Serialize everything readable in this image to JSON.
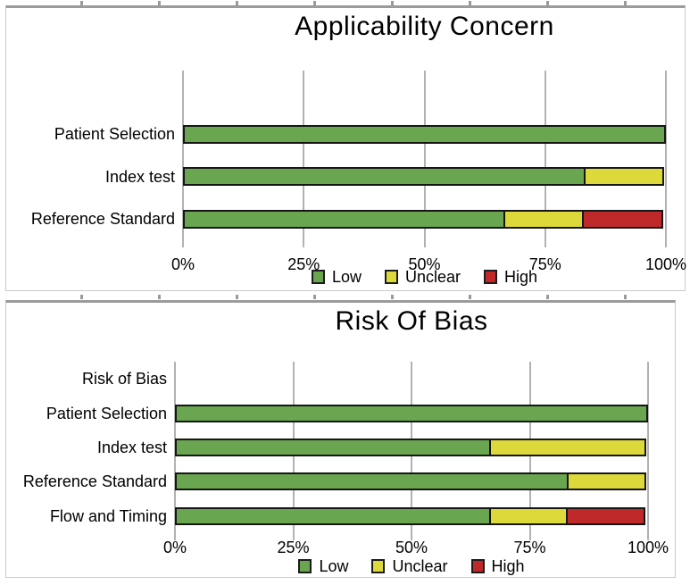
{
  "palette": {
    "low": "#69a64f",
    "unclear": "#ded93b",
    "high": "#c0292a",
    "bar_border": "#161616",
    "gridline": "#b2b2b2",
    "panel_border": "#c9c9c9",
    "text": "#000000"
  },
  "chart_data": [
    {
      "type": "bar",
      "orientation": "horizontal",
      "stacked": true,
      "title": "Applicability Concern",
      "categories": [
        "Patient Selection",
        "Index test",
        "Reference Standard"
      ],
      "series": [
        {
          "name": "Low",
          "color": "#69a64f",
          "values": [
            100,
            83.3,
            66.7
          ]
        },
        {
          "name": "Unclear",
          "color": "#ded93b",
          "values": [
            0,
            16.7,
            16.7
          ]
        },
        {
          "name": "High",
          "color": "#c0292a",
          "values": [
            0,
            0,
            16.7
          ]
        }
      ],
      "x_ticks": [
        "0%",
        "25%",
        "50%",
        "75%",
        "100%"
      ],
      "xlim": [
        0,
        100
      ],
      "grid": "vertical",
      "legend_position": "bottom",
      "leading_empty_rows": 1
    },
    {
      "type": "bar",
      "orientation": "horizontal",
      "stacked": true,
      "title": "Risk Of Bias",
      "categories": [
        "Risk of Bias",
        "Patient Selection",
        "Index test",
        "Reference Standard",
        "Flow and Timing"
      ],
      "series": [
        {
          "name": "Low",
          "color": "#69a64f",
          "values": [
            0,
            100,
            66.7,
            83.3,
            66.7
          ]
        },
        {
          "name": "Unclear",
          "color": "#ded93b",
          "values": [
            0,
            0,
            33.3,
            16.7,
            16.7
          ]
        },
        {
          "name": "High",
          "color": "#c0292a",
          "values": [
            0,
            0,
            0,
            0,
            16.7
          ]
        }
      ],
      "x_ticks": [
        "0%",
        "25%",
        "50%",
        "75%",
        "100%"
      ],
      "xlim": [
        0,
        100
      ],
      "grid": "vertical",
      "legend_position": "bottom",
      "leading_empty_rows": 0
    }
  ]
}
